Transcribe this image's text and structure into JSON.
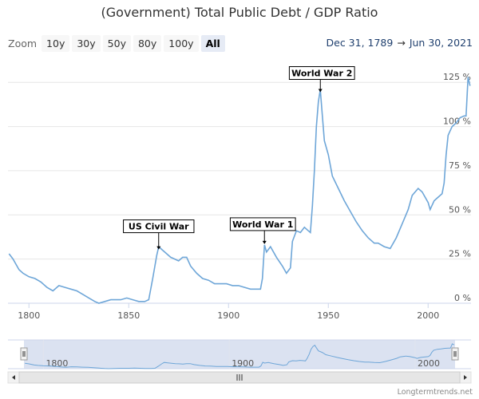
{
  "title": "(Government) Total Public Debt / GDP Ratio",
  "zoom": {
    "label": "Zoom",
    "buttons": [
      "10y",
      "30y",
      "50y",
      "80y",
      "100y",
      "All"
    ],
    "active": "All"
  },
  "range": {
    "from": "Dec 31, 1789",
    "arrow": "→",
    "to": "Jun 30, 2021"
  },
  "credit": "Longtermtrends.net",
  "colors": {
    "line": "#6ea6d8",
    "grid": "#e6e6e6",
    "navigator_fill": "#ccd6eb",
    "navigator_line": "#6ea6d8"
  },
  "navigator": {
    "ticks": [
      "1800",
      "1900",
      "2000"
    ],
    "handle_icon": "grip-icon",
    "scroll_icon": "scrollbar-grip-icon"
  },
  "chart_data": {
    "type": "line",
    "title": "(Government) Total Public Debt / GDP Ratio",
    "xlabel": "",
    "ylabel": "",
    "xlim": [
      1789.5,
      2021.5
    ],
    "ylim": [
      0,
      140
    ],
    "y_ticks": [
      0,
      25,
      50,
      75,
      100,
      125
    ],
    "y_tick_labels": [
      "0 %",
      "25 %",
      "50 %",
      "75 %",
      "100 %",
      "125 %"
    ],
    "x_ticks": [
      1800,
      1850,
      1900,
      1950,
      2000
    ],
    "x_tick_labels": [
      "1800",
      "1850",
      "1900",
      "1950",
      "2000"
    ],
    "grid": "horizontal",
    "series": [
      {
        "x": [
          1790,
          1792,
          1795,
          1797,
          1800,
          1803,
          1806,
          1809,
          1812,
          1815,
          1818,
          1821,
          1824,
          1827,
          1830,
          1833,
          1835,
          1838,
          1841,
          1843,
          1846,
          1849,
          1852,
          1855,
          1858,
          1860,
          1862,
          1864,
          1865,
          1867,
          1869,
          1871,
          1873,
          1875,
          1877,
          1879,
          1881,
          1884,
          1887,
          1890,
          1893,
          1896,
          1899,
          1902,
          1905,
          1908,
          1911,
          1914,
          1916,
          1917,
          1918,
          1919,
          1921,
          1924,
          1927,
          1929,
          1931,
          1932,
          1934,
          1936,
          1938,
          1940,
          1941,
          1942,
          1943,
          1944,
          1945,
          1946,
          1947,
          1948,
          1950,
          1952,
          1955,
          1958,
          1961,
          1964,
          1967,
          1970,
          1973,
          1975,
          1978,
          1981,
          1984,
          1987,
          1990,
          1992,
          1995,
          1997,
          2000,
          2001,
          2003,
          2005,
          2007,
          2008,
          2009,
          2010,
          2012,
          2014,
          2016,
          2018,
          2019,
          2020,
          2021
        ],
        "y": [
          28,
          25,
          19,
          17,
          15,
          14,
          12,
          9,
          7,
          10,
          9,
          8,
          7,
          5,
          3,
          1,
          0,
          1,
          2,
          2,
          2,
          3,
          2,
          1,
          1,
          2,
          14,
          27,
          32,
          30,
          28,
          26,
          25,
          24,
          26,
          26,
          21,
          17,
          14,
          13,
          11,
          11,
          11,
          10,
          10,
          9,
          8,
          8,
          8,
          14,
          33,
          29,
          32,
          26,
          21,
          17,
          20,
          35,
          41,
          40,
          43,
          41,
          40,
          55,
          75,
          100,
          114,
          121,
          106,
          92,
          84,
          72,
          65,
          58,
          52,
          46,
          41,
          37,
          34,
          34,
          32,
          31,
          37,
          45,
          53,
          61,
          65,
          63,
          57,
          53,
          58,
          60,
          62,
          68,
          84,
          95,
          100,
          102,
          105,
          106,
          106,
          128,
          123
        ]
      }
    ],
    "annotations": [
      {
        "text": "US Civil War",
        "x": 1865,
        "y": 30
      },
      {
        "text": "World War 1",
        "x": 1918,
        "y": 33
      },
      {
        "text": "World War 2",
        "x": 1946,
        "y": 119
      }
    ]
  }
}
